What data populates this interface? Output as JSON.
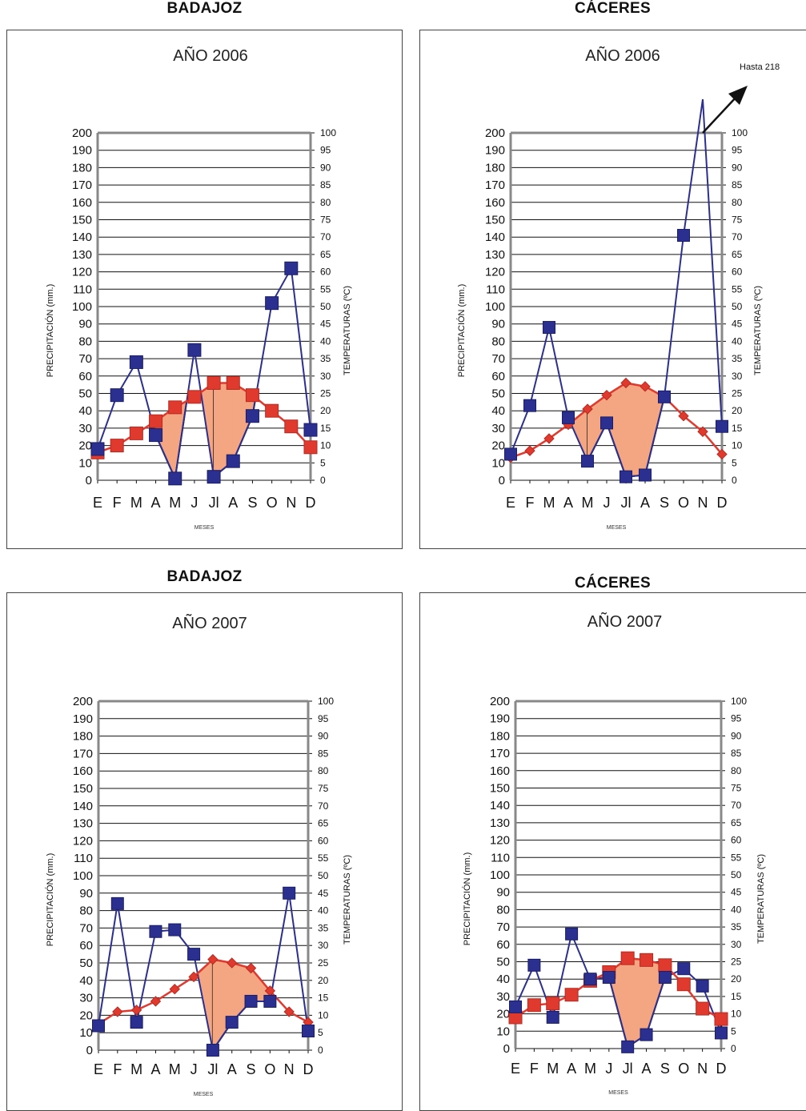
{
  "colors": {
    "precipitation": "#2b2f8f",
    "temperature": "#e03a2f",
    "arid_fill": "#f4a582",
    "frame": "#888888"
  },
  "charts": [
    {
      "city": "BADAJOZ",
      "year_title": "AÑO 2006",
      "note": "",
      "chart_data": {
        "type": "line",
        "categories": [
          "E",
          "F",
          "M",
          "A",
          "M",
          "J",
          "Jl",
          "A",
          "S",
          "O",
          "N",
          "D"
        ],
        "xlabel": "MESES",
        "ylabel": "PRECIPITACIÓN (mm.)",
        "y2label": "TEMPERATURAS (ºC)",
        "ylim": [
          0,
          200
        ],
        "y2lim": [
          0,
          100
        ],
        "yticks": [
          0,
          10,
          20,
          30,
          40,
          50,
          60,
          70,
          80,
          90,
          100,
          110,
          120,
          130,
          140,
          150,
          160,
          170,
          180,
          190,
          200
        ],
        "y2ticks": [
          0,
          5,
          10,
          15,
          20,
          25,
          30,
          35,
          40,
          45,
          50,
          55,
          60,
          65,
          70,
          75,
          80,
          85,
          90,
          95,
          100
        ],
        "series": [
          {
            "axis": "left",
            "marker": "square-large",
            "values": [
              18,
              49,
              68,
              26,
              1,
              75,
              2,
              11,
              37,
              102,
              122,
              29
            ]
          },
          {
            "axis": "right",
            "marker": "square-large",
            "values": [
              8,
              10,
              13.5,
              17,
              21,
              24,
              28,
              28,
              24.5,
              20,
              15.5,
              9.5
            ]
          }
        ]
      }
    },
    {
      "city": "CÁCERES",
      "year_title": "AÑO 2006",
      "note": "Hasta 218",
      "chart_data": {
        "type": "line",
        "categories": [
          "E",
          "F",
          "M",
          "A",
          "M",
          "J",
          "Jl",
          "A",
          "S",
          "O",
          "N",
          "D"
        ],
        "xlabel": "MESES",
        "ylabel": "PRECIPITACIÓN (mm.)",
        "y2label": "TEMPERATURAS (ºC)",
        "ylim": [
          0,
          200
        ],
        "y2lim": [
          0,
          100
        ],
        "yticks": [
          0,
          10,
          20,
          30,
          40,
          50,
          60,
          70,
          80,
          90,
          100,
          110,
          120,
          130,
          140,
          150,
          160,
          170,
          180,
          190,
          200
        ],
        "y2ticks": [
          0,
          5,
          10,
          15,
          20,
          25,
          30,
          35,
          40,
          45,
          50,
          55,
          60,
          65,
          70,
          75,
          80,
          85,
          90,
          95,
          100
        ],
        "series": [
          {
            "axis": "left",
            "marker": "square",
            "values": [
              15,
              43,
              88,
              36,
              11,
              33,
              2,
              3,
              48,
              141,
              218,
              31
            ]
          },
          {
            "axis": "right",
            "marker": "diamond",
            "values": [
              6.5,
              8.5,
              12,
              16,
              20.5,
              24.5,
              28,
              27,
              24,
              18.5,
              14,
              7.5
            ]
          }
        ]
      }
    },
    {
      "city": "BADAJOZ",
      "year_title": "AÑO 2007",
      "note": "",
      "chart_data": {
        "type": "line",
        "categories": [
          "E",
          "F",
          "M",
          "A",
          "M",
          "J",
          "Jl",
          "A",
          "S",
          "O",
          "N",
          "D"
        ],
        "xlabel": "MESES",
        "ylabel": "PRECIPITACIÓN (mm.)",
        "y2label": "TEMPERATURAS (ºC)",
        "ylim": [
          0,
          200
        ],
        "y2lim": [
          0,
          100
        ],
        "yticks": [
          0,
          10,
          20,
          30,
          40,
          50,
          60,
          70,
          80,
          90,
          100,
          110,
          120,
          130,
          140,
          150,
          160,
          170,
          180,
          190,
          200
        ],
        "y2ticks": [
          0,
          5,
          10,
          15,
          20,
          25,
          30,
          35,
          40,
          45,
          50,
          55,
          60,
          65,
          70,
          75,
          80,
          85,
          90,
          95,
          100
        ],
        "series": [
          {
            "axis": "left",
            "marker": "square",
            "values": [
              14,
              84,
              16,
              68,
              69,
              55,
              0,
              16,
              28,
              28,
              90,
              11
            ]
          },
          {
            "axis": "right",
            "marker": "diamond",
            "values": [
              7.5,
              11,
              11.5,
              14,
              17.5,
              21,
              26,
              25,
              23.5,
              17,
              11,
              8
            ]
          }
        ]
      }
    },
    {
      "city": "CÁCERES",
      "year_title": "AÑO 2007",
      "note": "",
      "chart_data": {
        "type": "line",
        "categories": [
          "E",
          "F",
          "M",
          "A",
          "M",
          "J",
          "Jl",
          "A",
          "S",
          "O",
          "N",
          "D"
        ],
        "xlabel": "MESES",
        "ylabel": "PRECIPITACIÓN (mm.)",
        "y2label": "TEMPERATURAS (ºC)",
        "ylim": [
          0,
          200
        ],
        "y2lim": [
          0,
          100
        ],
        "yticks": [
          0,
          10,
          20,
          30,
          40,
          50,
          60,
          70,
          80,
          90,
          100,
          110,
          120,
          130,
          140,
          150,
          160,
          170,
          180,
          190,
          200
        ],
        "y2ticks": [
          0,
          5,
          10,
          15,
          20,
          25,
          30,
          35,
          40,
          45,
          50,
          55,
          60,
          65,
          70,
          75,
          80,
          85,
          90,
          95,
          100
        ],
        "series": [
          {
            "axis": "left",
            "marker": "square",
            "values": [
              24,
              48,
              18,
              66,
              40,
              41,
              1,
              8,
              41,
              46,
              36,
              9
            ]
          },
          {
            "axis": "right",
            "marker": "square-large",
            "values": [
              9,
              12.5,
              13,
              15.5,
              19.5,
              22,
              26,
              25.5,
              24,
              18.5,
              11.5,
              8.5
            ]
          }
        ]
      }
    }
  ]
}
